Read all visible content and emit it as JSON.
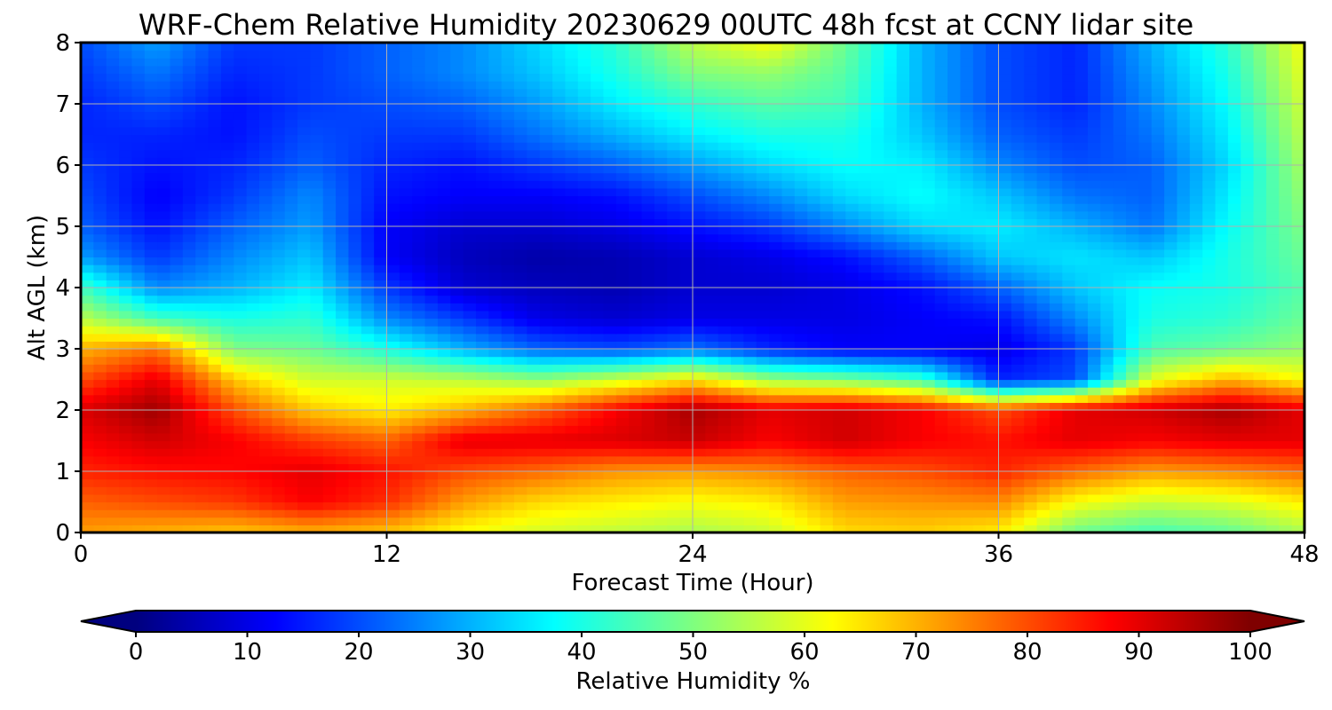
{
  "chart_data": {
    "type": "heatmap",
    "title": "WRF-Chem Relative Humidity 20230629 00UTC 48h fcst at CCNY lidar site",
    "xlabel": "Forecast Time (Hour)",
    "ylabel": "Alt AGL (km)",
    "xlim": [
      0,
      48
    ],
    "ylim": [
      0,
      8
    ],
    "xticks": [
      0,
      12,
      24,
      36,
      48
    ],
    "yticks": [
      0,
      1,
      2,
      3,
      4,
      5,
      6,
      7,
      8
    ],
    "grid": true,
    "x": [
      0,
      3,
      6,
      9,
      12,
      15,
      18,
      21,
      24,
      27,
      30,
      33,
      36,
      39,
      42,
      45,
      48
    ],
    "y": [
      0,
      0.5,
      1,
      1.5,
      2,
      2.5,
      3,
      3.5,
      4,
      4.5,
      5,
      5.5,
      6,
      6.5,
      7,
      7.5,
      8
    ],
    "z": [
      [
        72,
        70,
        68,
        70,
        68,
        62,
        58,
        56,
        54,
        57,
        66,
        67,
        64,
        48,
        44,
        47,
        54
      ],
      [
        78,
        80,
        82,
        88,
        83,
        72,
        66,
        64,
        62,
        64,
        72,
        73,
        74,
        62,
        57,
        59,
        64
      ],
      [
        84,
        86,
        87,
        90,
        86,
        80,
        77,
        73,
        72,
        74,
        78,
        80,
        84,
        77,
        72,
        74,
        77
      ],
      [
        88,
        92,
        88,
        82,
        78,
        90,
        90,
        91,
        93,
        88,
        92,
        88,
        86,
        90,
        88,
        90,
        90
      ],
      [
        91,
        97,
        80,
        68,
        64,
        70,
        78,
        88,
        96,
        90,
        92,
        88,
        80,
        90,
        92,
        96,
        90
      ],
      [
        80,
        90,
        68,
        58,
        58,
        56,
        52,
        58,
        65,
        53,
        50,
        44,
        16,
        20,
        60,
        70,
        62
      ],
      [
        70,
        76,
        50,
        48,
        40,
        30,
        22,
        20,
        24,
        16,
        12,
        12,
        10,
        18,
        45,
        48,
        52
      ],
      [
        56,
        44,
        40,
        42,
        26,
        18,
        10,
        8,
        10,
        10,
        10,
        12,
        14,
        26,
        40,
        42,
        48
      ],
      [
        44,
        26,
        30,
        36,
        18,
        8,
        6,
        5,
        8,
        8,
        10,
        14,
        22,
        32,
        38,
        40,
        46
      ],
      [
        28,
        18,
        26,
        32,
        12,
        6,
        4,
        5,
        8,
        10,
        14,
        22,
        32,
        35,
        32,
        40,
        48
      ],
      [
        22,
        14,
        22,
        28,
        12,
        8,
        8,
        10,
        14,
        18,
        26,
        34,
        36,
        30,
        24,
        38,
        50
      ],
      [
        20,
        12,
        18,
        26,
        14,
        12,
        12,
        14,
        20,
        26,
        34,
        38,
        32,
        24,
        22,
        36,
        52
      ],
      [
        18,
        14,
        16,
        22,
        16,
        14,
        18,
        22,
        28,
        34,
        38,
        36,
        26,
        20,
        22,
        34,
        54
      ],
      [
        16,
        16,
        14,
        20,
        18,
        18,
        24,
        30,
        36,
        40,
        40,
        32,
        22,
        18,
        24,
        36,
        56
      ],
      [
        16,
        20,
        14,
        18,
        20,
        22,
        28,
        36,
        42,
        46,
        44,
        30,
        20,
        16,
        26,
        38,
        58
      ],
      [
        18,
        24,
        16,
        18,
        22,
        26,
        32,
        40,
        50,
        52,
        46,
        30,
        20,
        16,
        28,
        40,
        60
      ],
      [
        20,
        28,
        18,
        18,
        22,
        26,
        34,
        42,
        56,
        62,
        48,
        30,
        20,
        16,
        30,
        42,
        62
      ]
    ],
    "colorbar": {
      "label": "Relative Humidity %",
      "range": [
        0,
        100
      ],
      "ticks": [
        0,
        10,
        20,
        30,
        40,
        50,
        60,
        70,
        80,
        90,
        100
      ],
      "extend": "both",
      "colormap": "jet",
      "colors": [
        "#00007f",
        "#0000ff",
        "#007fff",
        "#00ffff",
        "#7fff7f",
        "#ffff00",
        "#ff7f00",
        "#ff0000",
        "#7f0000"
      ]
    }
  }
}
